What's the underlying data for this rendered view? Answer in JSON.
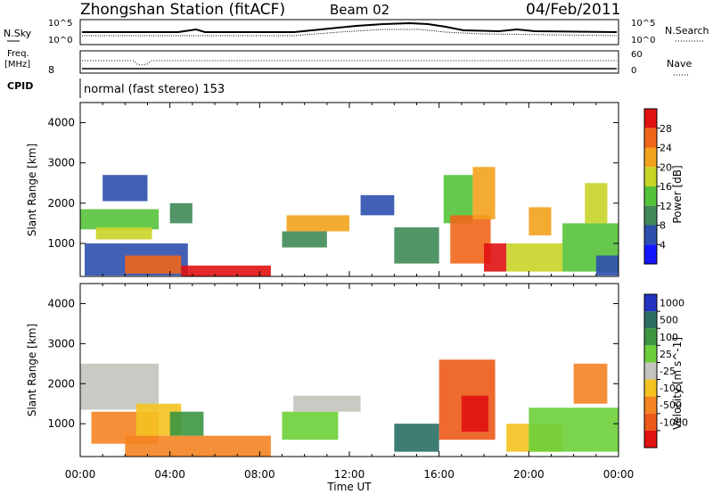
{
  "header": {
    "title": "Zhongshan Station (fitACF)",
    "beam": "Beam 02",
    "date": "04/Feb/2011"
  },
  "top_panels": {
    "nsky_label": "N.Sky",
    "nsky_ticks": [
      "10^5",
      "10^0"
    ],
    "nsearch_label": "N.Search",
    "nsearch_ticks": [
      "10^5",
      "10^0"
    ],
    "freq_label_1": "Freq.",
    "freq_label_2": "[MHz]",
    "freq_tick": "8",
    "nave_label": "Nave",
    "nave_ticks": [
      "60",
      "0"
    ],
    "cpid_label": "CPID",
    "cpid_text": "normal (fast stereo) 153"
  },
  "colors": {
    "power": [
      "#1515ff",
      "#2c4fae",
      "#3f8a56",
      "#55c33a",
      "#c8d428",
      "#f2a21c",
      "#f0661a",
      "#e01212"
    ],
    "velocity": [
      "#2233c0",
      "#2a6e64",
      "#3c9640",
      "#6ccf39",
      "#c4c4be",
      "#f4c320",
      "#f58422",
      "#ec5a18",
      "#e01212"
    ]
  },
  "chart_data": [
    {
      "type": "heatmap",
      "title": "Power",
      "xlabel": "",
      "ylabel": "Slant Range [km]",
      "xlim": [
        "00:00",
        "00:00"
      ],
      "x_ticks": [
        "00:00",
        "04:00",
        "08:00",
        "12:00",
        "16:00",
        "20:00",
        "00:00"
      ],
      "ylim": [
        180,
        4500
      ],
      "y_ticks": [
        "1000",
        "2000",
        "3000",
        "4000"
      ],
      "colorbar": {
        "label": "Power [dB]",
        "ticks": [
          "4",
          "8",
          "12",
          "16",
          "20",
          "24",
          "28"
        ],
        "range": [
          0,
          32
        ]
      },
      "regions": [
        {
          "t0": 0.0,
          "t1": 3.5,
          "r0": 1350,
          "r1": 1850,
          "level": 3
        },
        {
          "t0": 0.7,
          "t1": 3.2,
          "r0": 1100,
          "r1": 1400,
          "level": 4
        },
        {
          "t0": 1.0,
          "t1": 3.0,
          "r0": 2050,
          "r1": 2700,
          "level": 1
        },
        {
          "t0": 0.2,
          "t1": 4.8,
          "r0": 200,
          "r1": 1000,
          "level": 1
        },
        {
          "t0": 2.0,
          "t1": 4.5,
          "r0": 250,
          "r1": 700,
          "level": 6
        },
        {
          "t0": 4.5,
          "t1": 8.5,
          "r0": 180,
          "r1": 450,
          "level": 7
        },
        {
          "t0": 4.0,
          "t1": 5.0,
          "r0": 1500,
          "r1": 2000,
          "level": 2
        },
        {
          "t0": 9.2,
          "t1": 12.0,
          "r0": 1300,
          "r1": 1700,
          "level": 5
        },
        {
          "t0": 9.0,
          "t1": 11.0,
          "r0": 900,
          "r1": 1300,
          "level": 2
        },
        {
          "t0": 12.5,
          "t1": 14.0,
          "r0": 1700,
          "r1": 2200,
          "level": 1
        },
        {
          "t0": 14.0,
          "t1": 16.0,
          "r0": 500,
          "r1": 1400,
          "level": 2
        },
        {
          "t0": 16.2,
          "t1": 17.5,
          "r0": 1500,
          "r1": 2700,
          "level": 3
        },
        {
          "t0": 16.5,
          "t1": 18.3,
          "r0": 500,
          "r1": 1700,
          "level": 6
        },
        {
          "t0": 17.5,
          "t1": 18.5,
          "r0": 1600,
          "r1": 2900,
          "level": 5
        },
        {
          "t0": 18.0,
          "t1": 19.0,
          "r0": 300,
          "r1": 1000,
          "level": 7
        },
        {
          "t0": 19.0,
          "t1": 21.5,
          "r0": 300,
          "r1": 1000,
          "level": 4
        },
        {
          "t0": 20.0,
          "t1": 21.0,
          "r0": 1200,
          "r1": 1900,
          "level": 5
        },
        {
          "t0": 21.5,
          "t1": 24.0,
          "r0": 300,
          "r1": 1500,
          "level": 3
        },
        {
          "t0": 22.5,
          "t1": 23.5,
          "r0": 1500,
          "r1": 2500,
          "level": 4
        },
        {
          "t0": 23.0,
          "t1": 24.0,
          "r0": 200,
          "r1": 700,
          "level": 1
        }
      ]
    },
    {
      "type": "heatmap",
      "title": "Velocity",
      "xlabel": "Time UT",
      "ylabel": "Slant Range [km]",
      "xlim": [
        "00:00",
        "00:00"
      ],
      "x_ticks": [
        "00:00",
        "04:00",
        "08:00",
        "12:00",
        "16:00",
        "20:00",
        "00:00"
      ],
      "ylim": [
        180,
        4500
      ],
      "y_ticks": [
        "1000",
        "2000",
        "3000",
        "4000"
      ],
      "colorbar": {
        "label": "Velocity [m s^-1]",
        "ticks": [
          "1000",
          "500",
          "100",
          "25",
          "-25",
          "-100",
          "-500",
          "-1000"
        ]
      },
      "regions": [
        {
          "t0": 0.0,
          "t1": 3.5,
          "r0": 1350,
          "r1": 2500,
          "level": 4
        },
        {
          "t0": 0.5,
          "t1": 3.5,
          "r0": 500,
          "r1": 1300,
          "level": 6
        },
        {
          "t0": 2.0,
          "t1": 8.5,
          "r0": 180,
          "r1": 700,
          "level": 6
        },
        {
          "t0": 2.5,
          "t1": 4.5,
          "r0": 700,
          "r1": 1500,
          "level": 5
        },
        {
          "t0": 4.0,
          "t1": 5.5,
          "r0": 700,
          "r1": 1300,
          "level": 2
        },
        {
          "t0": 9.0,
          "t1": 11.5,
          "r0": 600,
          "r1": 1300,
          "level": 3
        },
        {
          "t0": 9.5,
          "t1": 12.5,
          "r0": 1300,
          "r1": 1700,
          "level": 4
        },
        {
          "t0": 14.0,
          "t1": 16.0,
          "r0": 300,
          "r1": 1000,
          "level": 1
        },
        {
          "t0": 16.0,
          "t1": 18.5,
          "r0": 600,
          "r1": 2600,
          "level": 7
        },
        {
          "t0": 17.0,
          "t1": 18.2,
          "r0": 800,
          "r1": 1700,
          "level": 8
        },
        {
          "t0": 19.0,
          "t1": 21.5,
          "r0": 300,
          "r1": 1000,
          "level": 5
        },
        {
          "t0": 20.0,
          "t1": 24.0,
          "r0": 300,
          "r1": 1400,
          "level": 3
        },
        {
          "t0": 22.0,
          "t1": 23.5,
          "r0": 1500,
          "r1": 2500,
          "level": 6
        }
      ]
    }
  ]
}
